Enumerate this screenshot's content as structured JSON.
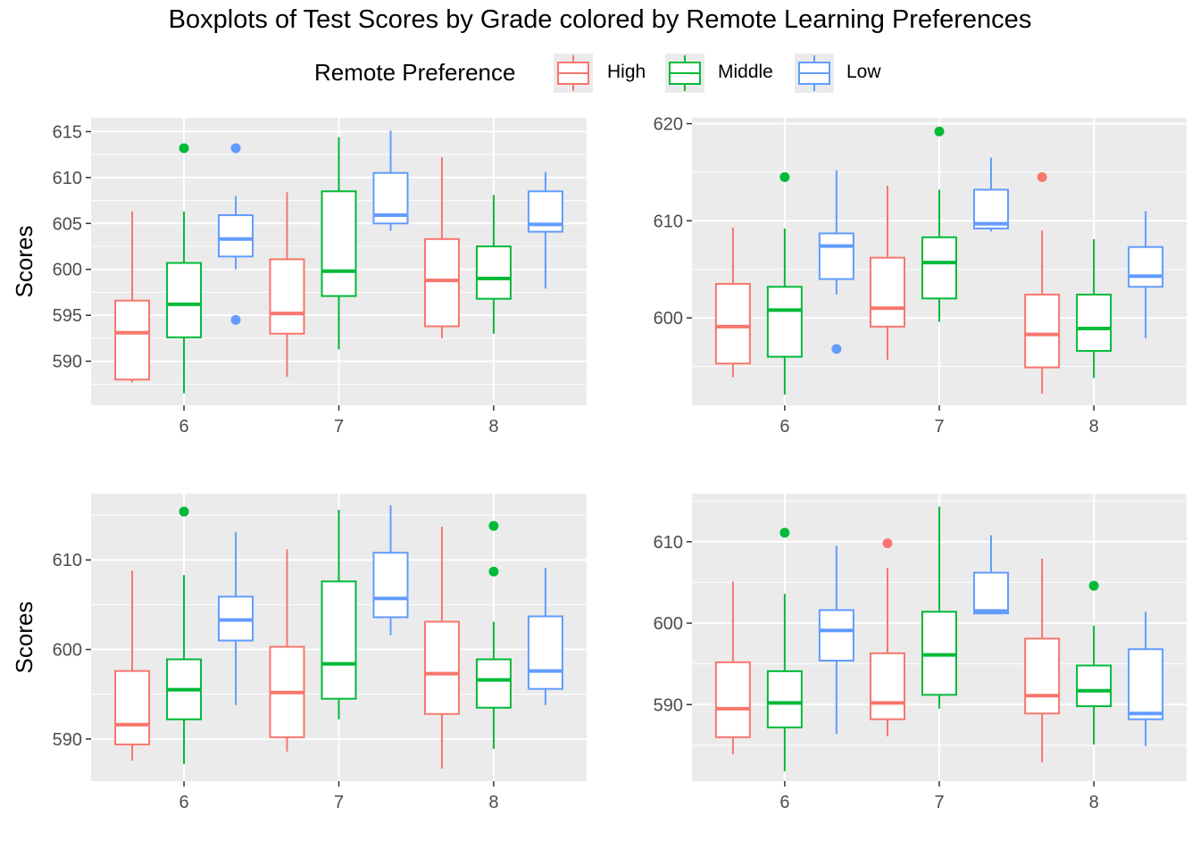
{
  "title": "Boxplots of Test Scores by Grade colored by Remote Learning Preferences",
  "legend": {
    "title": "Remote Preference",
    "items": [
      {
        "label": "High",
        "color": "#F8766D"
      },
      {
        "label": "Middle",
        "color": "#00BA38"
      },
      {
        "label": "Low",
        "color": "#619CFF"
      }
    ]
  },
  "chart_data": [
    {
      "type": "box",
      "ylabel": "Scores",
      "categories": [
        "6",
        "7",
        "8"
      ],
      "yticks": [
        590,
        595,
        600,
        605,
        610,
        615
      ],
      "ylim": [
        585.2,
        616.5
      ],
      "groups": {
        "6": {
          "High": {
            "min": 587.7,
            "q1": 588.0,
            "median": 593.1,
            "q3": 596.6,
            "max": 606.3,
            "outliers": []
          },
          "Middle": {
            "min": 586.5,
            "q1": 592.6,
            "median": 596.2,
            "q3": 600.7,
            "max": 606.3,
            "outliers": [
              613.2
            ]
          },
          "Low": {
            "min": 600.0,
            "q1": 601.4,
            "median": 603.3,
            "q3": 605.9,
            "max": 608.0,
            "outliers": [
              613.2,
              594.5
            ]
          }
        },
        "7": {
          "High": {
            "min": 588.3,
            "q1": 593.0,
            "median": 595.2,
            "q3": 601.1,
            "max": 608.4,
            "outliers": []
          },
          "Middle": {
            "min": 591.3,
            "q1": 597.1,
            "median": 599.8,
            "q3": 608.5,
            "max": 614.4,
            "outliers": []
          },
          "Low": {
            "min": 604.2,
            "q1": 605.0,
            "median": 605.9,
            "q3": 610.5,
            "max": 615.1,
            "outliers": []
          }
        },
        "8": {
          "High": {
            "min": 592.5,
            "q1": 593.8,
            "median": 598.8,
            "q3": 603.3,
            "max": 612.2,
            "outliers": []
          },
          "Middle": {
            "min": 593.0,
            "q1": 596.8,
            "median": 599.0,
            "q3": 602.5,
            "max": 608.1,
            "outliers": []
          },
          "Low": {
            "min": 597.9,
            "q1": 604.1,
            "median": 604.9,
            "q3": 608.5,
            "max": 610.6,
            "outliers": []
          }
        }
      }
    },
    {
      "type": "box",
      "ylabel": "",
      "categories": [
        "6",
        "7",
        "8"
      ],
      "yticks": [
        600,
        610,
        620
      ],
      "ylim": [
        591.0,
        620.6
      ],
      "groups": {
        "6": {
          "High": {
            "min": 593.9,
            "q1": 595.3,
            "median": 599.1,
            "q3": 603.5,
            "max": 609.3,
            "outliers": []
          },
          "Middle": {
            "min": 592.1,
            "q1": 596.0,
            "median": 600.8,
            "q3": 603.2,
            "max": 609.2,
            "outliers": [
              614.5
            ]
          },
          "Low": {
            "min": 602.4,
            "q1": 604.0,
            "median": 607.4,
            "q3": 608.7,
            "max": 615.2,
            "outliers": [
              596.8
            ]
          }
        },
        "7": {
          "High": {
            "min": 595.7,
            "q1": 599.1,
            "median": 601.0,
            "q3": 606.2,
            "max": 613.6,
            "outliers": []
          },
          "Middle": {
            "min": 599.6,
            "q1": 602.0,
            "median": 605.7,
            "q3": 608.3,
            "max": 613.2,
            "outliers": [
              619.2
            ]
          },
          "Low": {
            "min": 608.9,
            "q1": 609.2,
            "median": 609.7,
            "q3": 613.2,
            "max": 616.5,
            "outliers": []
          }
        },
        "8": {
          "High": {
            "min": 592.2,
            "q1": 594.9,
            "median": 598.3,
            "q3": 602.4,
            "max": 609.0,
            "outliers": [
              614.5
            ]
          },
          "Middle": {
            "min": 593.8,
            "q1": 596.6,
            "median": 598.9,
            "q3": 602.4,
            "max": 608.1,
            "outliers": []
          },
          "Low": {
            "min": 597.9,
            "q1": 603.2,
            "median": 604.3,
            "q3": 607.3,
            "max": 611.0,
            "outliers": []
          }
        }
      }
    },
    {
      "type": "box",
      "ylabel": "Scores",
      "categories": [
        "6",
        "7",
        "8"
      ],
      "yticks": [
        590,
        600,
        610
      ],
      "ylim": [
        585.3,
        617.4
      ],
      "groups": {
        "6": {
          "High": {
            "min": 587.6,
            "q1": 589.4,
            "median": 591.6,
            "q3": 597.6,
            "max": 608.8,
            "outliers": []
          },
          "Middle": {
            "min": 587.2,
            "q1": 592.2,
            "median": 595.5,
            "q3": 598.9,
            "max": 608.3,
            "outliers": [
              615.4
            ]
          },
          "Low": {
            "min": 593.8,
            "q1": 601.0,
            "median": 603.3,
            "q3": 605.9,
            "max": 613.1,
            "outliers": []
          }
        },
        "7": {
          "High": {
            "min": 588.6,
            "q1": 590.2,
            "median": 595.2,
            "q3": 600.3,
            "max": 611.2,
            "outliers": []
          },
          "Middle": {
            "min": 592.2,
            "q1": 594.5,
            "median": 598.4,
            "q3": 607.6,
            "max": 615.6,
            "outliers": []
          },
          "Low": {
            "min": 601.6,
            "q1": 603.6,
            "median": 605.7,
            "q3": 610.8,
            "max": 616.1,
            "outliers": []
          }
        },
        "8": {
          "High": {
            "min": 586.7,
            "q1": 592.8,
            "median": 597.3,
            "q3": 603.1,
            "max": 613.7,
            "outliers": []
          },
          "Middle": {
            "min": 588.9,
            "q1": 593.5,
            "median": 596.6,
            "q3": 598.9,
            "max": 603.1,
            "outliers": [
              613.8,
              608.7
            ]
          },
          "Low": {
            "min": 593.8,
            "q1": 595.6,
            "median": 597.6,
            "q3": 603.7,
            "max": 609.1,
            "outliers": []
          }
        }
      }
    },
    {
      "type": "box",
      "ylabel": "",
      "categories": [
        "6",
        "7",
        "8"
      ],
      "yticks": [
        590,
        600,
        610
      ],
      "ylim": [
        580.6,
        615.9
      ],
      "groups": {
        "6": {
          "High": {
            "min": 583.9,
            "q1": 586.0,
            "median": 589.5,
            "q3": 595.2,
            "max": 605.1,
            "outliers": []
          },
          "Middle": {
            "min": 581.8,
            "q1": 587.2,
            "median": 590.2,
            "q3": 594.1,
            "max": 603.6,
            "outliers": [
              611.1
            ]
          },
          "Low": {
            "min": 586.4,
            "q1": 595.4,
            "median": 599.1,
            "q3": 601.6,
            "max": 609.5,
            "outliers": []
          }
        },
        "7": {
          "High": {
            "min": 586.1,
            "q1": 588.2,
            "median": 590.2,
            "q3": 596.3,
            "max": 606.8,
            "outliers": [
              609.8
            ]
          },
          "Middle": {
            "min": 589.5,
            "q1": 591.2,
            "median": 596.1,
            "q3": 601.4,
            "max": 614.3,
            "outliers": []
          },
          "Low": {
            "min": 601.1,
            "q1": 601.2,
            "median": 601.5,
            "q3": 606.2,
            "max": 610.8,
            "outliers": []
          }
        },
        "8": {
          "High": {
            "min": 582.9,
            "q1": 588.9,
            "median": 591.1,
            "q3": 598.1,
            "max": 607.9,
            "outliers": []
          },
          "Middle": {
            "min": 585.1,
            "q1": 589.8,
            "median": 591.7,
            "q3": 594.8,
            "max": 599.7,
            "outliers": [
              604.6
            ]
          },
          "Low": {
            "min": 584.9,
            "q1": 588.2,
            "median": 588.9,
            "q3": 596.8,
            "max": 601.4,
            "outliers": []
          }
        }
      }
    }
  ]
}
